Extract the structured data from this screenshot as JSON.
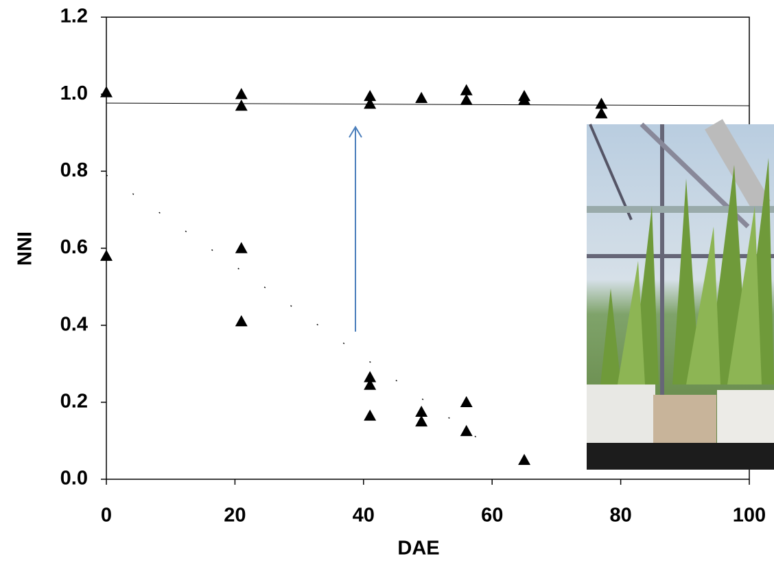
{
  "chart_data": {
    "type": "scatter",
    "x_label": "DAE",
    "y_label": "NNI",
    "xlim": [
      0,
      100
    ],
    "ylim": [
      0,
      1.2
    ],
    "xticks": [
      0,
      20,
      40,
      60,
      80,
      100
    ],
    "yticks": [
      {
        "value": 0,
        "label": "0.0"
      },
      {
        "value": 0.2,
        "label": "0.2"
      },
      {
        "value": 0.4,
        "label": "0.4"
      },
      {
        "value": 0.6,
        "label": "0.6"
      },
      {
        "value": 0.8,
        "label": "0.8"
      },
      {
        "value": 1,
        "label": "1.0"
      },
      {
        "value": 1.2,
        "label": "1.2"
      }
    ],
    "color": "#000000",
    "x": [
      0,
      21,
      21,
      41,
      41,
      49,
      56,
      56,
      65,
      65,
      77,
      77,
      0,
      21,
      21,
      41,
      41,
      41,
      49,
      49,
      56,
      56,
      65
    ],
    "values": [
      1.005,
      1.0,
      0.97,
      0.995,
      0.975,
      0.99,
      1.01,
      0.985,
      0.995,
      0.985,
      0.975,
      0.95,
      0.58,
      0.6,
      0.41,
      0.265,
      0.245,
      0.165,
      0.175,
      0.15,
      0.2,
      0.125,
      0.05
    ],
    "lines": [
      {
        "x": [
          0,
          100
        ],
        "values": [
          0.977,
          0.97
        ],
        "dashed": false
      },
      {
        "x": [
          0,
          60
        ],
        "values": [
          0.79,
          0.08
        ],
        "dashed": true
      }
    ]
  }
}
